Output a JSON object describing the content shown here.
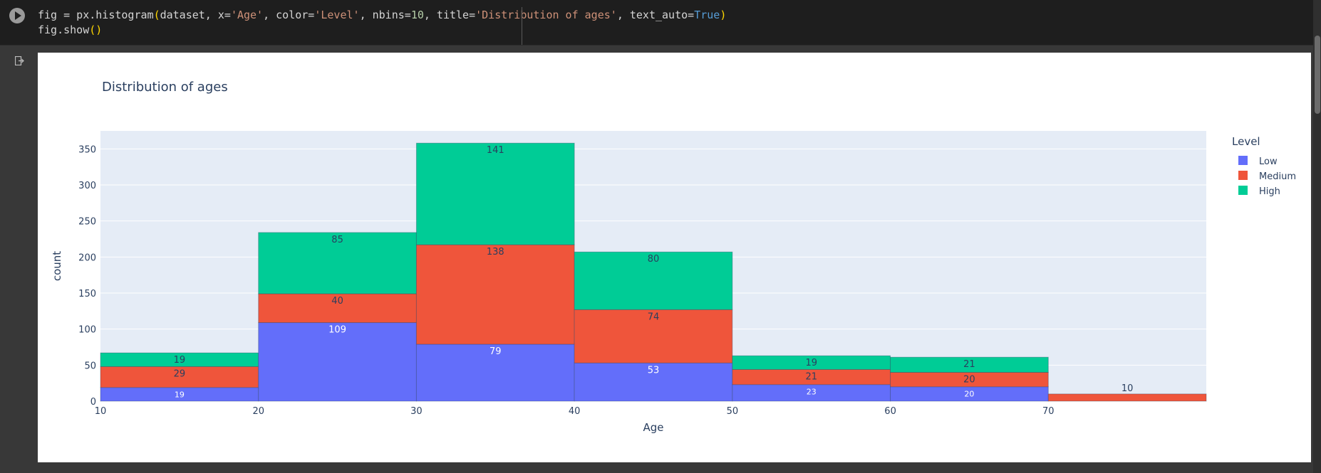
{
  "code": {
    "line1": [
      {
        "t": "fig = px.histogram",
        "c": "var"
      },
      {
        "t": "(",
        "c": "par"
      },
      {
        "t": "dataset, x=",
        "c": "var"
      },
      {
        "t": "'Age'",
        "c": "str"
      },
      {
        "t": ", color=",
        "c": "var"
      },
      {
        "t": "'Level'",
        "c": "str"
      },
      {
        "t": ", nbins=",
        "c": "var"
      },
      {
        "t": "10",
        "c": "num"
      },
      {
        "t": ", title=",
        "c": "var"
      },
      {
        "t": "'Distribution of ages'",
        "c": "str"
      },
      {
        "t": ", text_auto=",
        "c": "var"
      },
      {
        "t": "True",
        "c": "kw"
      },
      {
        "t": ")",
        "c": "par"
      }
    ],
    "line2": [
      {
        "t": "fig.show",
        "c": "var"
      },
      {
        "t": "()",
        "c": "par"
      }
    ]
  },
  "chart_data": {
    "type": "bar",
    "title": "Distribution of ages",
    "xlabel": "Age",
    "ylabel": "count",
    "xlim": [
      10,
      80
    ],
    "ylim": [
      0,
      375
    ],
    "yticks": [
      0,
      50,
      100,
      150,
      200,
      250,
      300,
      350
    ],
    "xticks": [
      10,
      20,
      30,
      40,
      50,
      60,
      70
    ],
    "bins": [
      [
        10,
        20
      ],
      [
        20,
        30
      ],
      [
        30,
        40
      ],
      [
        40,
        50
      ],
      [
        50,
        60
      ],
      [
        60,
        70
      ],
      [
        70,
        80
      ]
    ],
    "legend_title": "Level",
    "legend_position": "right",
    "grid": true,
    "series": [
      {
        "name": "Low",
        "color": "#636efa",
        "values": [
          19,
          109,
          79,
          53,
          23,
          20,
          0
        ]
      },
      {
        "name": "Medium",
        "color": "#ef553b",
        "values": [
          29,
          40,
          138,
          74,
          21,
          20,
          10
        ]
      },
      {
        "name": "High",
        "color": "#00cc96",
        "values": [
          19,
          85,
          141,
          80,
          19,
          21,
          0
        ]
      }
    ]
  }
}
